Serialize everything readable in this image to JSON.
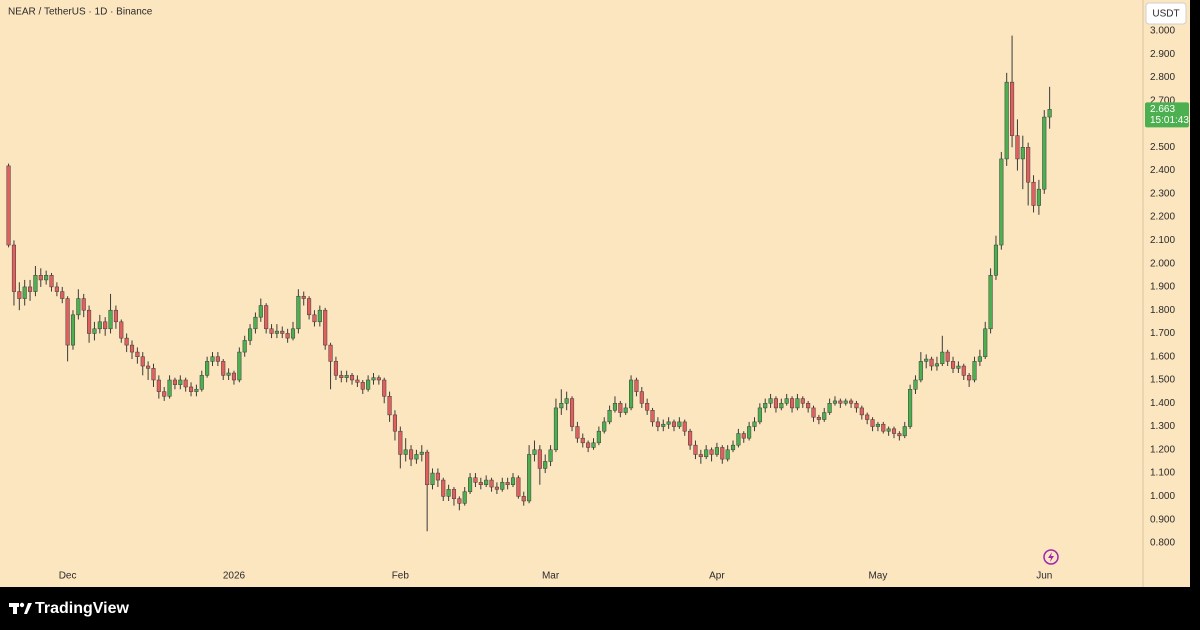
{
  "chart_data": {
    "type": "candlestick",
    "title": "NEAR / TetherUS · 1D · Binance",
    "currency": "USDT",
    "brand": "TradingView",
    "countdown": "15:01:43",
    "last_price": {
      "value": 2.663,
      "label": "2.663"
    },
    "colors": {
      "up": "#4caf50",
      "down": "#e0605e",
      "wick": "#3a3a3a",
      "last": "#4caf50"
    },
    "ylim": [
      0.619,
      3.133
    ],
    "xlim": [
      -1.6,
      211.4
    ],
    "yticks": [
      {
        "value": 0.8,
        "label": "0.800"
      },
      {
        "value": 0.9,
        "label": "0.900"
      },
      {
        "value": 1.0,
        "label": "1.000"
      },
      {
        "value": 1.1,
        "label": "1.100"
      },
      {
        "value": 1.2,
        "label": "1.200"
      },
      {
        "value": 1.3,
        "label": "1.300"
      },
      {
        "value": 1.4,
        "label": "1.400"
      },
      {
        "value": 1.5,
        "label": "1.500"
      },
      {
        "value": 1.6,
        "label": "1.600"
      },
      {
        "value": 1.7,
        "label": "1.700"
      },
      {
        "value": 1.8,
        "label": "1.800"
      },
      {
        "value": 1.9,
        "label": "1.900"
      },
      {
        "value": 2.0,
        "label": "2.000"
      },
      {
        "value": 2.1,
        "label": "2.100"
      },
      {
        "value": 2.2,
        "label": "2.200"
      },
      {
        "value": 2.3,
        "label": "2.300"
      },
      {
        "value": 2.4,
        "label": "2.400"
      },
      {
        "value": 2.5,
        "label": "2.500"
      },
      {
        "value": 2.6,
        "label": "2.600"
      },
      {
        "value": 2.7,
        "label": "2.700"
      },
      {
        "value": 2.8,
        "label": "2.800"
      },
      {
        "value": 2.9,
        "label": "2.900"
      },
      {
        "value": 3.0,
        "label": "3.000"
      }
    ],
    "xticks": [
      {
        "value": 11,
        "label": "Dec"
      },
      {
        "value": 42,
        "label": "2026"
      },
      {
        "value": 73,
        "label": "Feb"
      },
      {
        "value": 101,
        "label": "Mar"
      },
      {
        "value": 132,
        "label": "Apr"
      },
      {
        "value": 162,
        "label": "May"
      },
      {
        "value": 193,
        "label": "Jun"
      }
    ],
    "ohlc": [
      [
        2.42,
        2.43,
        2.07,
        2.08
      ],
      [
        2.08,
        2.1,
        1.82,
        1.88
      ],
      [
        1.88,
        1.92,
        1.8,
        1.85
      ],
      [
        1.85,
        1.93,
        1.82,
        1.9
      ],
      [
        1.9,
        1.93,
        1.84,
        1.88
      ],
      [
        1.88,
        1.99,
        1.86,
        1.95
      ],
      [
        1.95,
        1.98,
        1.9,
        1.93
      ],
      [
        1.93,
        1.97,
        1.91,
        1.95
      ],
      [
        1.95,
        1.96,
        1.88,
        1.9
      ],
      [
        1.9,
        1.92,
        1.86,
        1.88
      ],
      [
        1.88,
        1.9,
        1.83,
        1.85
      ],
      [
        1.85,
        1.86,
        1.58,
        1.65
      ],
      [
        1.65,
        1.8,
        1.63,
        1.78
      ],
      [
        1.78,
        1.89,
        1.76,
        1.85
      ],
      [
        1.85,
        1.87,
        1.77,
        1.8
      ],
      [
        1.8,
        1.82,
        1.66,
        1.7
      ],
      [
        1.7,
        1.75,
        1.67,
        1.72
      ],
      [
        1.72,
        1.78,
        1.7,
        1.75
      ],
      [
        1.75,
        1.77,
        1.69,
        1.72
      ],
      [
        1.72,
        1.87,
        1.7,
        1.8
      ],
      [
        1.8,
        1.82,
        1.72,
        1.75
      ],
      [
        1.75,
        1.76,
        1.66,
        1.68
      ],
      [
        1.68,
        1.7,
        1.62,
        1.65
      ],
      [
        1.65,
        1.67,
        1.59,
        1.62
      ],
      [
        1.62,
        1.64,
        1.57,
        1.6
      ],
      [
        1.6,
        1.62,
        1.52,
        1.56
      ],
      [
        1.56,
        1.58,
        1.5,
        1.55
      ],
      [
        1.55,
        1.57,
        1.47,
        1.5
      ],
      [
        1.5,
        1.52,
        1.42,
        1.45
      ],
      [
        1.45,
        1.47,
        1.41,
        1.43
      ],
      [
        1.43,
        1.52,
        1.42,
        1.5
      ],
      [
        1.5,
        1.51,
        1.46,
        1.48
      ],
      [
        1.48,
        1.52,
        1.46,
        1.5
      ],
      [
        1.5,
        1.51,
        1.45,
        1.47
      ],
      [
        1.47,
        1.49,
        1.43,
        1.45
      ],
      [
        1.45,
        1.48,
        1.43,
        1.46
      ],
      [
        1.46,
        1.54,
        1.45,
        1.52
      ],
      [
        1.52,
        1.6,
        1.51,
        1.58
      ],
      [
        1.58,
        1.62,
        1.56,
        1.6
      ],
      [
        1.6,
        1.62,
        1.56,
        1.58
      ],
      [
        1.58,
        1.59,
        1.5,
        1.52
      ],
      [
        1.52,
        1.55,
        1.5,
        1.53
      ],
      [
        1.53,
        1.54,
        1.48,
        1.5
      ],
      [
        1.5,
        1.64,
        1.49,
        1.62
      ],
      [
        1.62,
        1.69,
        1.6,
        1.67
      ],
      [
        1.67,
        1.74,
        1.65,
        1.72
      ],
      [
        1.72,
        1.79,
        1.7,
        1.77
      ],
      [
        1.77,
        1.85,
        1.75,
        1.82
      ],
      [
        1.82,
        1.83,
        1.7,
        1.72
      ],
      [
        1.72,
        1.74,
        1.68,
        1.7
      ],
      [
        1.7,
        1.74,
        1.68,
        1.71
      ],
      [
        1.71,
        1.73,
        1.68,
        1.7
      ],
      [
        1.7,
        1.72,
        1.66,
        1.68
      ],
      [
        1.68,
        1.75,
        1.67,
        1.72
      ],
      [
        1.72,
        1.89,
        1.7,
        1.86
      ],
      [
        1.86,
        1.88,
        1.82,
        1.85
      ],
      [
        1.85,
        1.86,
        1.76,
        1.78
      ],
      [
        1.78,
        1.8,
        1.73,
        1.75
      ],
      [
        1.75,
        1.82,
        1.73,
        1.8
      ],
      [
        1.8,
        1.81,
        1.63,
        1.65
      ],
      [
        1.65,
        1.66,
        1.46,
        1.58
      ],
      [
        1.58,
        1.6,
        1.5,
        1.52
      ],
      [
        1.52,
        1.54,
        1.49,
        1.51
      ],
      [
        1.51,
        1.54,
        1.49,
        1.52
      ],
      [
        1.52,
        1.53,
        1.48,
        1.5
      ],
      [
        1.5,
        1.52,
        1.47,
        1.49
      ],
      [
        1.49,
        1.5,
        1.44,
        1.46
      ],
      [
        1.46,
        1.52,
        1.45,
        1.5
      ],
      [
        1.5,
        1.53,
        1.48,
        1.51
      ],
      [
        1.51,
        1.52,
        1.48,
        1.5
      ],
      [
        1.5,
        1.51,
        1.4,
        1.43
      ],
      [
        1.43,
        1.45,
        1.32,
        1.35
      ],
      [
        1.35,
        1.37,
        1.24,
        1.28
      ],
      [
        1.28,
        1.3,
        1.12,
        1.18
      ],
      [
        1.18,
        1.25,
        1.15,
        1.2
      ],
      [
        1.2,
        1.22,
        1.13,
        1.16
      ],
      [
        1.16,
        1.2,
        1.14,
        1.18
      ],
      [
        1.18,
        1.22,
        1.15,
        1.19
      ],
      [
        1.19,
        1.2,
        0.85,
        1.05
      ],
      [
        1.05,
        1.12,
        1.03,
        1.1
      ],
      [
        1.1,
        1.12,
        1.04,
        1.07
      ],
      [
        1.07,
        1.08,
        0.98,
        1.0
      ],
      [
        1.0,
        1.05,
        0.98,
        1.03
      ],
      [
        1.03,
        1.04,
        0.96,
        0.99
      ],
      [
        0.99,
        1.0,
        0.94,
        0.97
      ],
      [
        0.97,
        1.04,
        0.96,
        1.02
      ],
      [
        1.02,
        1.1,
        1.01,
        1.08
      ],
      [
        1.08,
        1.1,
        1.04,
        1.06
      ],
      [
        1.06,
        1.08,
        1.03,
        1.05
      ],
      [
        1.05,
        1.09,
        1.04,
        1.07
      ],
      [
        1.07,
        1.08,
        1.02,
        1.04
      ],
      [
        1.04,
        1.06,
        1.01,
        1.03
      ],
      [
        1.03,
        1.08,
        1.02,
        1.06
      ],
      [
        1.06,
        1.08,
        1.03,
        1.05
      ],
      [
        1.05,
        1.1,
        1.04,
        1.08
      ],
      [
        1.08,
        1.09,
        0.99,
        1.0
      ],
      [
        1.0,
        1.02,
        0.96,
        0.98
      ],
      [
        0.98,
        1.22,
        0.97,
        1.18
      ],
      [
        1.18,
        1.24,
        1.15,
        1.2
      ],
      [
        1.2,
        1.22,
        1.05,
        1.12
      ],
      [
        1.12,
        1.18,
        1.1,
        1.15
      ],
      [
        1.15,
        1.22,
        1.13,
        1.2
      ],
      [
        1.2,
        1.42,
        1.19,
        1.38
      ],
      [
        1.38,
        1.46,
        1.35,
        1.4
      ],
      [
        1.4,
        1.45,
        1.37,
        1.42
      ],
      [
        1.42,
        1.43,
        1.28,
        1.3
      ],
      [
        1.3,
        1.32,
        1.23,
        1.25
      ],
      [
        1.25,
        1.27,
        1.21,
        1.23
      ],
      [
        1.23,
        1.24,
        1.19,
        1.21
      ],
      [
        1.21,
        1.25,
        1.2,
        1.23
      ],
      [
        1.23,
        1.3,
        1.22,
        1.28
      ],
      [
        1.28,
        1.34,
        1.27,
        1.32
      ],
      [
        1.32,
        1.39,
        1.31,
        1.37
      ],
      [
        1.37,
        1.43,
        1.36,
        1.4
      ],
      [
        1.4,
        1.41,
        1.34,
        1.36
      ],
      [
        1.36,
        1.4,
        1.35,
        1.38
      ],
      [
        1.38,
        1.52,
        1.37,
        1.5
      ],
      [
        1.5,
        1.51,
        1.43,
        1.45
      ],
      [
        1.45,
        1.47,
        1.38,
        1.4
      ],
      [
        1.4,
        1.42,
        1.35,
        1.37
      ],
      [
        1.37,
        1.38,
        1.3,
        1.32
      ],
      [
        1.32,
        1.34,
        1.28,
        1.3
      ],
      [
        1.3,
        1.33,
        1.28,
        1.31
      ],
      [
        1.31,
        1.34,
        1.29,
        1.32
      ],
      [
        1.32,
        1.33,
        1.28,
        1.3
      ],
      [
        1.3,
        1.34,
        1.29,
        1.32
      ],
      [
        1.32,
        1.33,
        1.26,
        1.28
      ],
      [
        1.28,
        1.29,
        1.2,
        1.22
      ],
      [
        1.22,
        1.24,
        1.16,
        1.18
      ],
      [
        1.18,
        1.2,
        1.14,
        1.17
      ],
      [
        1.17,
        1.22,
        1.16,
        1.2
      ],
      [
        1.2,
        1.21,
        1.15,
        1.18
      ],
      [
        1.18,
        1.23,
        1.17,
        1.21
      ],
      [
        1.21,
        1.22,
        1.14,
        1.16
      ],
      [
        1.16,
        1.22,
        1.15,
        1.2
      ],
      [
        1.2,
        1.24,
        1.19,
        1.22
      ],
      [
        1.22,
        1.29,
        1.21,
        1.27
      ],
      [
        1.27,
        1.28,
        1.23,
        1.25
      ],
      [
        1.25,
        1.32,
        1.24,
        1.3
      ],
      [
        1.3,
        1.34,
        1.28,
        1.32
      ],
      [
        1.32,
        1.4,
        1.31,
        1.38
      ],
      [
        1.38,
        1.42,
        1.36,
        1.4
      ],
      [
        1.4,
        1.44,
        1.38,
        1.42
      ],
      [
        1.42,
        1.43,
        1.36,
        1.38
      ],
      [
        1.38,
        1.42,
        1.37,
        1.4
      ],
      [
        1.4,
        1.44,
        1.39,
        1.42
      ],
      [
        1.42,
        1.43,
        1.36,
        1.38
      ],
      [
        1.38,
        1.44,
        1.37,
        1.42
      ],
      [
        1.42,
        1.43,
        1.38,
        1.4
      ],
      [
        1.4,
        1.41,
        1.36,
        1.38
      ],
      [
        1.38,
        1.39,
        1.32,
        1.34
      ],
      [
        1.34,
        1.35,
        1.31,
        1.33
      ],
      [
        1.33,
        1.38,
        1.32,
        1.36
      ],
      [
        1.36,
        1.42,
        1.35,
        1.4
      ],
      [
        1.4,
        1.43,
        1.39,
        1.41
      ],
      [
        1.41,
        1.42,
        1.38,
        1.4
      ],
      [
        1.4,
        1.42,
        1.39,
        1.41
      ],
      [
        1.41,
        1.42,
        1.38,
        1.4
      ],
      [
        1.4,
        1.41,
        1.36,
        1.38
      ],
      [
        1.38,
        1.39,
        1.33,
        1.35
      ],
      [
        1.35,
        1.36,
        1.31,
        1.33
      ],
      [
        1.33,
        1.34,
        1.28,
        1.3
      ],
      [
        1.3,
        1.32,
        1.28,
        1.31
      ],
      [
        1.31,
        1.32,
        1.27,
        1.28
      ],
      [
        1.28,
        1.3,
        1.26,
        1.29
      ],
      [
        1.29,
        1.3,
        1.25,
        1.27
      ],
      [
        1.27,
        1.28,
        1.24,
        1.26
      ],
      [
        1.26,
        1.32,
        1.25,
        1.3
      ],
      [
        1.3,
        1.48,
        1.29,
        1.46
      ],
      [
        1.46,
        1.52,
        1.44,
        1.5
      ],
      [
        1.5,
        1.62,
        1.49,
        1.58
      ],
      [
        1.58,
        1.61,
        1.55,
        1.59
      ],
      [
        1.59,
        1.6,
        1.54,
        1.56
      ],
      [
        1.56,
        1.6,
        1.54,
        1.57
      ],
      [
        1.57,
        1.69,
        1.56,
        1.62
      ],
      [
        1.62,
        1.63,
        1.56,
        1.58
      ],
      [
        1.58,
        1.6,
        1.53,
        1.55
      ],
      [
        1.55,
        1.58,
        1.53,
        1.56
      ],
      [
        1.56,
        1.57,
        1.5,
        1.52
      ],
      [
        1.52,
        1.53,
        1.47,
        1.5
      ],
      [
        1.5,
        1.6,
        1.49,
        1.58
      ],
      [
        1.58,
        1.63,
        1.56,
        1.6
      ],
      [
        1.6,
        1.75,
        1.59,
        1.72
      ],
      [
        1.72,
        1.98,
        1.7,
        1.95
      ],
      [
        1.95,
        2.12,
        1.93,
        2.08
      ],
      [
        2.08,
        2.48,
        2.06,
        2.45
      ],
      [
        2.45,
        2.82,
        2.42,
        2.78
      ],
      [
        2.78,
        2.98,
        2.5,
        2.55
      ],
      [
        2.55,
        2.62,
        2.4,
        2.45
      ],
      [
        2.45,
        2.55,
        2.32,
        2.5
      ],
      [
        2.5,
        2.52,
        2.25,
        2.35
      ],
      [
        2.35,
        2.38,
        2.22,
        2.25
      ],
      [
        2.25,
        2.36,
        2.21,
        2.32
      ],
      [
        2.32,
        2.66,
        2.3,
        2.63
      ],
      [
        2.63,
        2.76,
        2.58,
        2.663
      ]
    ]
  }
}
